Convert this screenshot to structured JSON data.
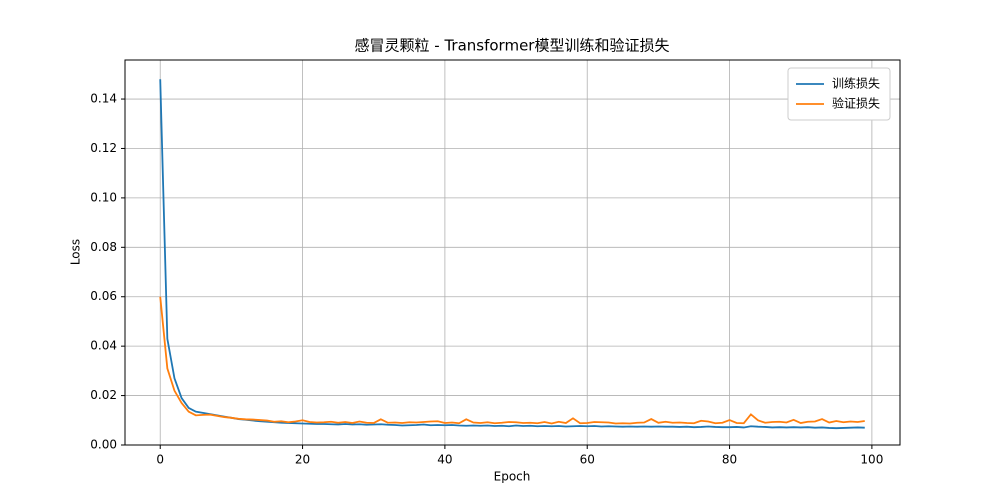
{
  "chart_data": {
    "type": "line",
    "title": "感冒灵颗粒 - Transformer模型训练和验证损失",
    "xlabel": "Epoch",
    "ylabel": "Loss",
    "x": [
      0,
      1,
      2,
      3,
      4,
      5,
      6,
      7,
      8,
      9,
      10,
      11,
      12,
      13,
      14,
      15,
      16,
      17,
      18,
      19,
      20,
      21,
      22,
      23,
      24,
      25,
      26,
      27,
      28,
      29,
      30,
      31,
      32,
      33,
      34,
      35,
      36,
      37,
      38,
      39,
      40,
      41,
      42,
      43,
      44,
      45,
      46,
      47,
      48,
      49,
      50,
      51,
      52,
      53,
      54,
      55,
      56,
      57,
      58,
      59,
      60,
      61,
      62,
      63,
      64,
      65,
      66,
      67,
      68,
      69,
      70,
      71,
      72,
      73,
      74,
      75,
      76,
      77,
      78,
      79,
      80,
      81,
      82,
      83,
      84,
      85,
      86,
      87,
      88,
      89,
      90,
      91,
      92,
      93,
      94,
      95,
      96,
      97,
      98,
      99
    ],
    "series": [
      {
        "name": "训练损失",
        "color": "#1f77b4",
        "values": [
          0.148,
          0.043,
          0.027,
          0.019,
          0.015,
          0.0135,
          0.013,
          0.0125,
          0.012,
          0.0115,
          0.011,
          0.0105,
          0.0102,
          0.0099,
          0.0096,
          0.0094,
          0.0092,
          0.009,
          0.0089,
          0.0088,
          0.0087,
          0.0086,
          0.0085,
          0.0085,
          0.0084,
          0.0083,
          0.0085,
          0.0083,
          0.0084,
          0.0082,
          0.0083,
          0.0084,
          0.0082,
          0.0081,
          0.0079,
          0.008,
          0.0081,
          0.0083,
          0.008,
          0.0081,
          0.008,
          0.0081,
          0.0079,
          0.0078,
          0.0079,
          0.0078,
          0.0079,
          0.0077,
          0.0078,
          0.0076,
          0.0079,
          0.0077,
          0.0078,
          0.0076,
          0.0077,
          0.0076,
          0.0077,
          0.0075,
          0.0076,
          0.0077,
          0.0076,
          0.0077,
          0.0075,
          0.0076,
          0.0075,
          0.0074,
          0.0075,
          0.0074,
          0.0075,
          0.0074,
          0.0075,
          0.0074,
          0.0074,
          0.0073,
          0.0074,
          0.0072,
          0.0073,
          0.0075,
          0.0073,
          0.0072,
          0.0072,
          0.0073,
          0.0071,
          0.0076,
          0.0074,
          0.0073,
          0.0071,
          0.0072,
          0.0071,
          0.0072,
          0.0071,
          0.0072,
          0.007,
          0.0071,
          0.0069,
          0.0068,
          0.0069,
          0.007,
          0.0071,
          0.007
        ]
      },
      {
        "name": "验证损失",
        "color": "#ff7f0e",
        "values": [
          0.06,
          0.031,
          0.022,
          0.017,
          0.0135,
          0.012,
          0.0122,
          0.0123,
          0.0118,
          0.0113,
          0.011,
          0.0106,
          0.0104,
          0.0103,
          0.0101,
          0.0099,
          0.0094,
          0.0096,
          0.0092,
          0.0095,
          0.01,
          0.0093,
          0.0091,
          0.0092,
          0.0094,
          0.009,
          0.0093,
          0.0089,
          0.0095,
          0.009,
          0.0089,
          0.0104,
          0.009,
          0.0091,
          0.0089,
          0.0092,
          0.0091,
          0.0093,
          0.0095,
          0.0096,
          0.0089,
          0.0091,
          0.0088,
          0.0104,
          0.0091,
          0.0089,
          0.0092,
          0.0088,
          0.009,
          0.0093,
          0.0092,
          0.0089,
          0.009,
          0.0088,
          0.0093,
          0.0087,
          0.0094,
          0.0089,
          0.0108,
          0.0088,
          0.0089,
          0.0093,
          0.0092,
          0.0091,
          0.0087,
          0.0088,
          0.0087,
          0.009,
          0.0091,
          0.0105,
          0.009,
          0.0094,
          0.009,
          0.0091,
          0.0089,
          0.0088,
          0.0098,
          0.0095,
          0.0088,
          0.009,
          0.0101,
          0.0089,
          0.0088,
          0.0124,
          0.01,
          0.009,
          0.0093,
          0.0094,
          0.0091,
          0.0102,
          0.0089,
          0.0094,
          0.0095,
          0.0105,
          0.0091,
          0.0097,
          0.0092,
          0.0095,
          0.0093,
          0.0097
        ]
      }
    ],
    "xlim": [
      -4.95,
      103.95
    ],
    "ylim": [
      0,
      0.1558
    ],
    "xticks": [
      0,
      20,
      40,
      60,
      80,
      100
    ],
    "yticks": [
      {
        "value": 0,
        "label": "0.00"
      },
      0.02,
      0.04,
      0.06,
      0.08,
      {
        "value": 0.1,
        "label": "0.10"
      },
      0.12,
      0.14
    ],
    "grid": true,
    "legend": "upper right"
  }
}
